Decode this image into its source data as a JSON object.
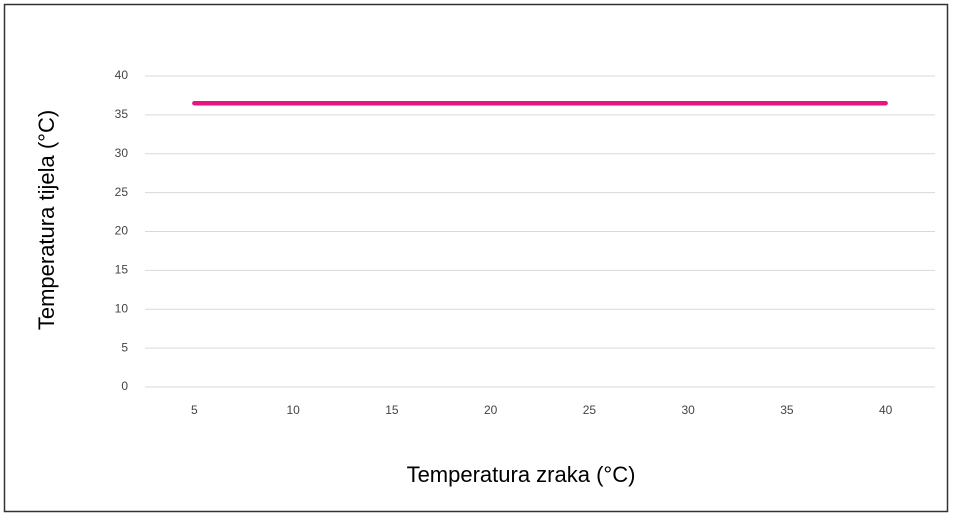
{
  "chart_data": {
    "type": "line",
    "x_label": "Temperatura zraka (°C)",
    "y_label": "Temperatura tijela (°C)",
    "categories": [
      5,
      10,
      15,
      20,
      25,
      30,
      35,
      40
    ],
    "series": [
      {
        "color": "#e8147f",
        "values": [
          36.5,
          36.5,
          36.5,
          36.5,
          36.5,
          36.5,
          36.5,
          36.5
        ]
      }
    ],
    "ylim": [
      0,
      40
    ],
    "yticks": [
      0,
      5,
      10,
      15,
      20,
      25,
      30,
      35,
      40
    ],
    "grid": true
  }
}
